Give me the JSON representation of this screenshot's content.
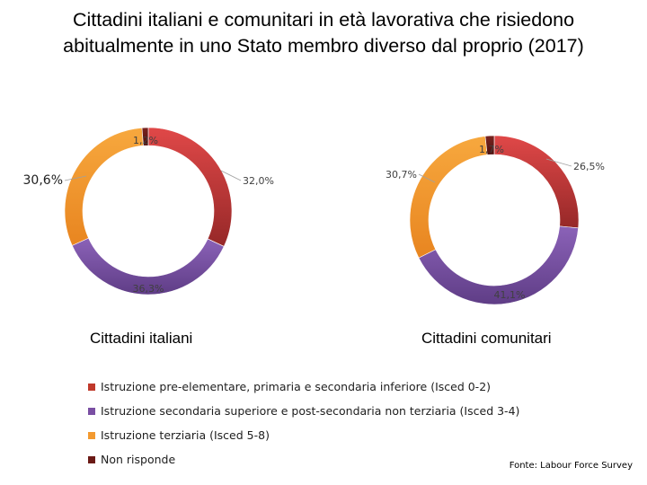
{
  "title": {
    "line1": "Cittadini italiani e comunitari in età lavorativa che risiedono",
    "line2": "abitualmente in uno Stato membro diverso dal proprio (2017)"
  },
  "legend": [
    {
      "label": "Istruzione pre-elementare, primaria e secondaria inferiore (Isced 0-2)",
      "color": "#c0392b"
    },
    {
      "label": "Istruzione secondaria superiore e post-secondaria non terziaria (Isced 3-4)",
      "color": "#7a4fa3"
    },
    {
      "label": "Istruzione terziaria (Isced 5-8)",
      "color": "#f39a30"
    },
    {
      "label": "Non risponde",
      "color": "#6b1a16"
    }
  ],
  "source": "Fonte: Labour Force Survey",
  "chart_data": [
    {
      "type": "pie",
      "title": "Cittadini italiani",
      "donut": true,
      "categories": [
        "Isced 0-2",
        "Isced 3-4",
        "Isced 5-8",
        "Non risponde"
      ],
      "values": [
        32.0,
        36.3,
        30.6,
        1.2
      ],
      "labels": [
        "32,0%",
        "36,3%",
        "30,6%",
        "1,2%"
      ],
      "colors": [
        "#c0392b",
        "#7a4fa3",
        "#f39a30",
        "#6b1a16"
      ]
    },
    {
      "type": "pie",
      "title": "Cittadini comunitari",
      "donut": true,
      "categories": [
        "Isced 0-2",
        "Isced 3-4",
        "Isced 5-8",
        "Non risponde"
      ],
      "values": [
        26.5,
        41.1,
        30.7,
        1.7
      ],
      "labels": [
        "26,5%",
        "41,1%",
        "30,7%",
        "1,7%"
      ],
      "colors": [
        "#c0392b",
        "#7a4fa3",
        "#f39a30",
        "#6b1a16"
      ]
    }
  ]
}
